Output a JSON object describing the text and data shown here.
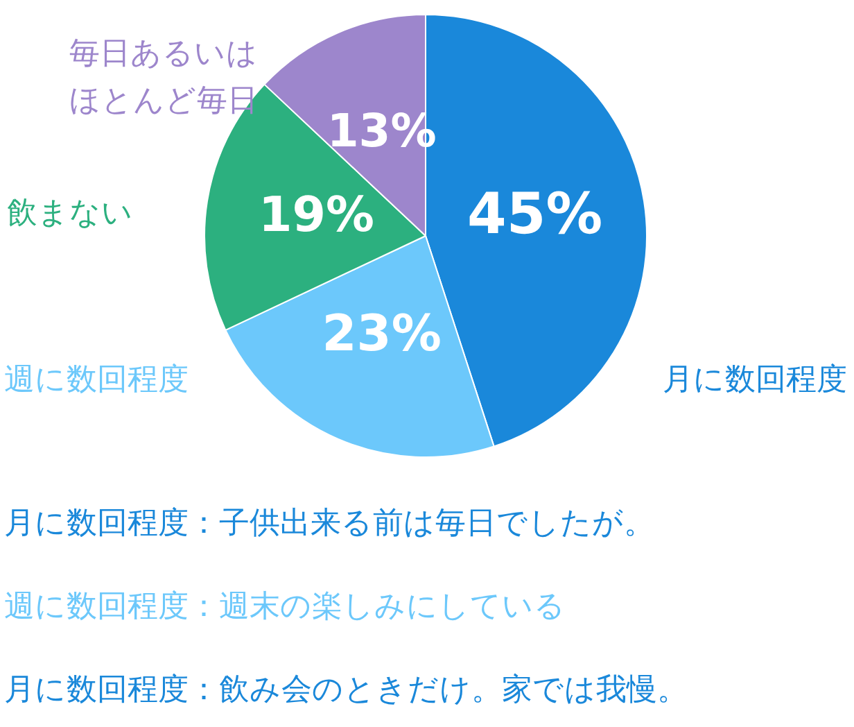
{
  "chart_data": {
    "type": "pie",
    "categories": [
      "月に数回程度",
      "週に数回程度",
      "飲まない",
      "毎日あるいはほとんど毎日"
    ],
    "values": [
      45,
      23,
      19,
      13
    ],
    "value_labels": [
      "45%",
      "23%",
      "19%",
      "13%"
    ],
    "colors": [
      "#1a88da",
      "#6cc8fb",
      "#2cb07f",
      "#9d86cc"
    ],
    "legend": false,
    "annotations": [
      "月に数回程度：子供出来る前は毎日でしたが。",
      "週に数回程度：週末の楽しみにしている",
      "月に数回程度：飲み会のときだけ。家では我慢。"
    ]
  }
}
